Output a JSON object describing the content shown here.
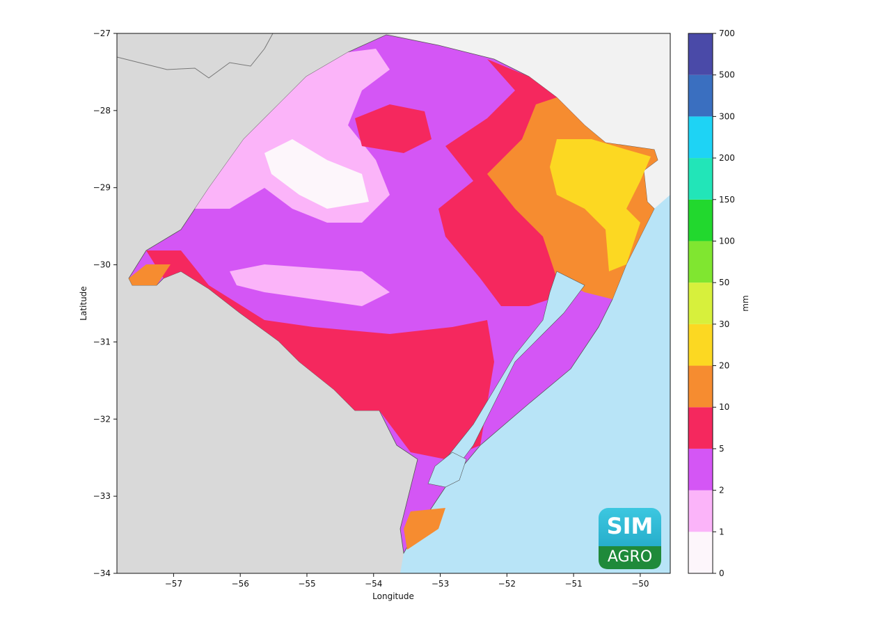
{
  "map": {
    "xlabel": "Longitude",
    "ylabel": "Latitude",
    "xlim": [
      -57.85,
      -49.55
    ],
    "ylim": [
      -34,
      -27
    ],
    "xticks": [
      {
        "value": -57,
        "label": "−57"
      },
      {
        "value": -56,
        "label": "−56"
      },
      {
        "value": -55,
        "label": "−55"
      },
      {
        "value": -54,
        "label": "−54"
      },
      {
        "value": -53,
        "label": "−53"
      },
      {
        "value": -52,
        "label": "−52"
      },
      {
        "value": -51,
        "label": "−51"
      },
      {
        "value": -50,
        "label": "−50"
      }
    ],
    "yticks": [
      {
        "value": -27,
        "label": "−27"
      },
      {
        "value": -28,
        "label": "−28"
      },
      {
        "value": -29,
        "label": "−29"
      },
      {
        "value": -30,
        "label": "−30"
      },
      {
        "value": -31,
        "label": "−31"
      },
      {
        "value": -32,
        "label": "−32"
      },
      {
        "value": -33,
        "label": "−33"
      },
      {
        "value": -34,
        "label": "−34"
      }
    ]
  },
  "colorbar": {
    "label": "mm",
    "boundaries": [
      0,
      1,
      2,
      5,
      10,
      20,
      30,
      50,
      100,
      150,
      200,
      300,
      500,
      700
    ],
    "colors": [
      "#fdf6fb",
      "#fbb4f9",
      "#d456f5",
      "#f5285e",
      "#f68c30",
      "#fcd822",
      "#d7f03c",
      "#80e630",
      "#22d82e",
      "#22e5b8",
      "#1ed3f5",
      "#3a6fc0",
      "#4a4aa8"
    ]
  },
  "logo": {
    "top": "SIM",
    "bottom": "AGRO"
  }
}
